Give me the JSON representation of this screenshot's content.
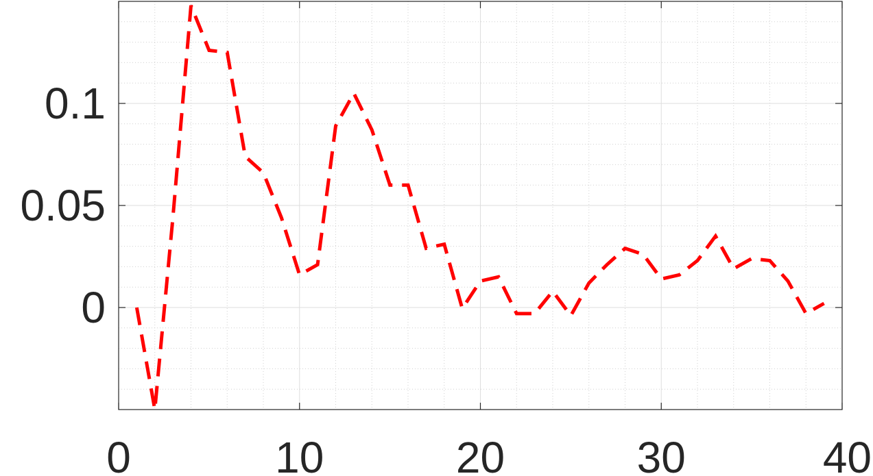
{
  "chart_data": {
    "type": "line",
    "title": "",
    "xlabel": "",
    "ylabel": "",
    "xlim": [
      0,
      40
    ],
    "ylim": [
      -0.05,
      0.15
    ],
    "xticks": [
      0,
      10,
      20,
      30,
      40
    ],
    "xtick_labels": [
      "0",
      "10",
      "20",
      "30",
      "40"
    ],
    "yticks": [
      0,
      0.05,
      0.1
    ],
    "ytick_labels": [
      "0",
      "0.05",
      "0.1"
    ],
    "grid": true,
    "minor_grid": true,
    "legend": "none",
    "series": [
      {
        "color": "#ff0000",
        "line_style": "dashed",
        "x": [
          1,
          2,
          3,
          4,
          5,
          6,
          7,
          8,
          9,
          10,
          11,
          12,
          13,
          14,
          15,
          16,
          17,
          18,
          19,
          20,
          21,
          22,
          23,
          24,
          25,
          26,
          27,
          28,
          29,
          30,
          31,
          32,
          33,
          34,
          35,
          36,
          37,
          38,
          39
        ],
        "y": [
          0.0,
          -0.05,
          0.044,
          0.148,
          0.126,
          0.125,
          0.074,
          0.066,
          0.044,
          0.016,
          0.021,
          0.089,
          0.105,
          0.087,
          0.06,
          0.06,
          0.029,
          0.031,
          -0.0005,
          0.013,
          0.015,
          -0.003,
          -0.003,
          0.008,
          -0.004,
          0.012,
          0.021,
          0.029,
          0.026,
          0.014,
          0.016,
          0.023,
          0.035,
          0.019,
          0.024,
          0.023,
          0.013,
          -0.003,
          0.002
        ]
      }
    ]
  }
}
